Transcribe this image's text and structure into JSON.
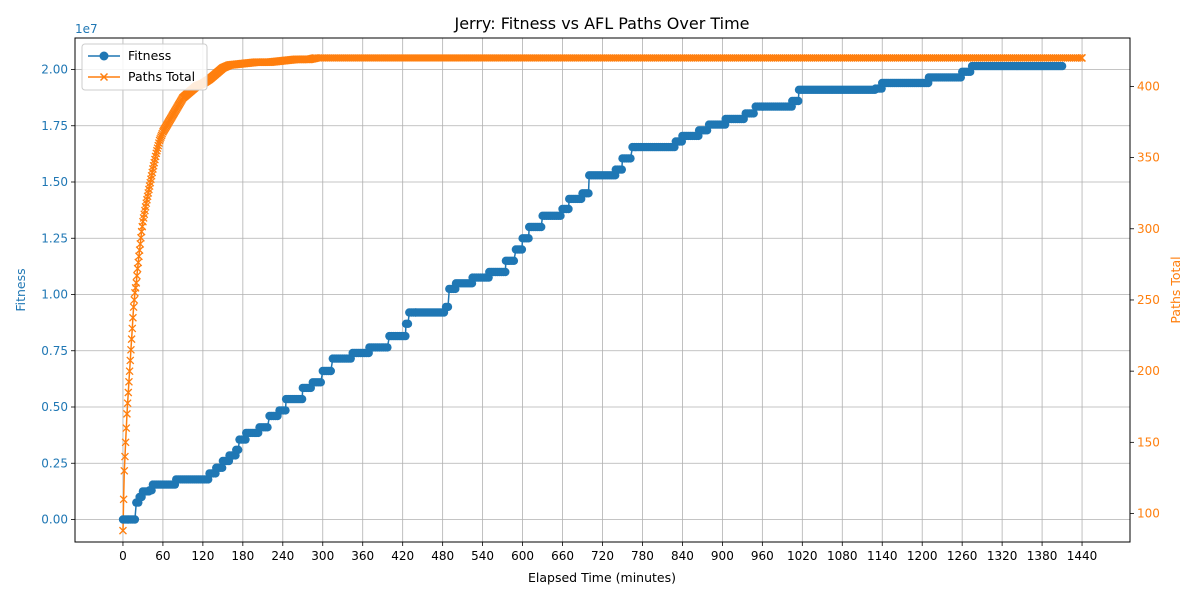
{
  "chart_data": {
    "type": "line",
    "title": "Jerry: Fitness vs AFL Paths Over Time",
    "xlabel": "Elapsed Time (minutes)",
    "ylabel_left": "Fitness",
    "ylabel_right": "Paths Total",
    "left_offset_text": "1e7",
    "xlim": [
      -72,
      1512
    ],
    "ylim_left": [
      -1000000,
      21400000
    ],
    "ylim_right": [
      80,
      434
    ],
    "x_ticks": [
      0,
      60,
      120,
      180,
      240,
      300,
      360,
      420,
      480,
      540,
      600,
      660,
      720,
      780,
      840,
      900,
      960,
      1020,
      1080,
      1140,
      1200,
      1260,
      1320,
      1380,
      1440
    ],
    "y_ticks_left": [
      0,
      2500000,
      5000000,
      7500000,
      10000000,
      12500000,
      15000000,
      17500000,
      20000000
    ],
    "y_tick_labels_left": [
      "0.00",
      "0.25",
      "0.50",
      "0.75",
      "1.00",
      "1.25",
      "1.50",
      "1.75",
      "2.00"
    ],
    "y_ticks_right": [
      100,
      150,
      200,
      250,
      300,
      350,
      400
    ],
    "grid": true,
    "legend": {
      "placement": "top-left",
      "entries": [
        "Fitness",
        "Paths Total"
      ]
    },
    "colors": {
      "fitness": "#1f77b4",
      "paths": "#ff7f0e",
      "grid": "#b0b0b0",
      "axis": "#000000"
    },
    "series": [
      {
        "name": "Fitness",
        "axis": "left",
        "marker": "circle",
        "x": [
          0,
          18,
          20,
          25,
          30,
          40,
          45,
          80,
          130,
          140,
          150,
          160,
          170,
          175,
          185,
          205,
          220,
          235,
          245,
          270,
          285,
          300,
          315,
          345,
          370,
          400,
          425,
          430,
          440,
          485,
          490,
          500,
          525,
          550,
          575,
          590,
          600,
          610,
          630,
          660,
          670,
          690,
          700,
          740,
          750,
          765,
          830,
          840,
          865,
          880,
          905,
          935,
          950,
          1005,
          1015,
          1130,
          1140,
          1210,
          1260,
          1275,
          1410
        ],
        "y": [
          0,
          0,
          750000,
          1000000,
          1250000,
          1300000,
          1550000,
          1780000,
          2050000,
          2300000,
          2600000,
          2850000,
          3100000,
          3550000,
          3850000,
          4100000,
          4600000,
          4850000,
          5350000,
          5850000,
          6100000,
          6600000,
          7150000,
          7400000,
          7650000,
          8150000,
          8700000,
          9200000,
          9200000,
          9450000,
          10250000,
          10500000,
          10750000,
          11000000,
          11500000,
          12000000,
          12500000,
          13000000,
          13500000,
          13800000,
          14250000,
          14500000,
          15300000,
          15550000,
          16050000,
          16550000,
          16800000,
          17050000,
          17300000,
          17550000,
          17800000,
          18050000,
          18350000,
          18600000,
          19100000,
          19150000,
          19400000,
          19650000,
          19900000,
          20150000,
          20150000
        ]
      },
      {
        "name": "Paths Total",
        "axis": "right",
        "marker": "x",
        "x": [
          0,
          1,
          2,
          3,
          4,
          5,
          6,
          8,
          10,
          12,
          14,
          16,
          18,
          20,
          22,
          25,
          28,
          30,
          35,
          40,
          45,
          50,
          55,
          60,
          65,
          70,
          80,
          90,
          100,
          110,
          120,
          130,
          140,
          150,
          160,
          180,
          200,
          220,
          240,
          260,
          280,
          290,
          1440
        ],
        "y": [
          88,
          110,
          130,
          140,
          150,
          160,
          170,
          185,
          200,
          215,
          230,
          245,
          255,
          262,
          272,
          285,
          298,
          305,
          318,
          330,
          342,
          353,
          362,
          368,
          372,
          376,
          384,
          392,
          396,
          400,
          402,
          405,
          409,
          413,
          415,
          416,
          417,
          417,
          418,
          419,
          419,
          420,
          420
        ]
      }
    ]
  }
}
